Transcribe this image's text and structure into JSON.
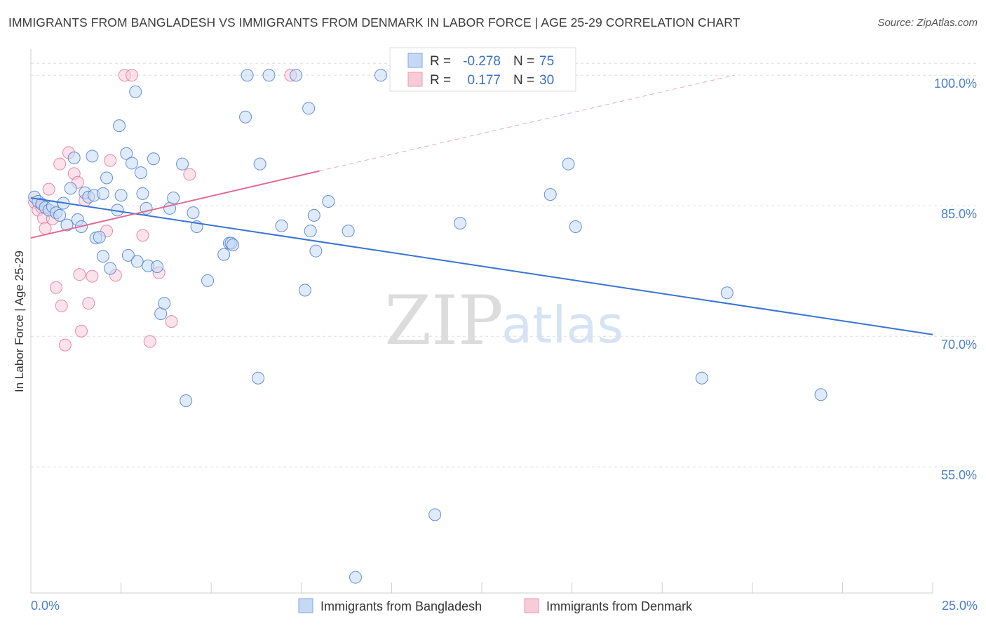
{
  "title": "IMMIGRANTS FROM BANGLADESH VS IMMIGRANTS FROM DENMARK IN LABOR FORCE | AGE 25-29 CORRELATION CHART",
  "source": "Source: ZipAtlas.com",
  "watermark": {
    "zip": "ZIP",
    "atlas": "atlas"
  },
  "colors": {
    "blue": "#4a7fd0",
    "blue_fill": "#c5d9f5",
    "blue_line": "#3a74d0",
    "pink": "#e0789b",
    "pink_fill": "#f9cad8",
    "pink_line": "#e06a92",
    "grid": "#dddddd"
  },
  "legend": {
    "rows": [
      {
        "r_label": "R = ",
        "r_value": "-0.278",
        "n_label": "N = ",
        "n_value": "75"
      },
      {
        "r_label": "R = ",
        "r_value": "0.177",
        "n_label": "N = ",
        "n_value": "30"
      }
    ]
  },
  "chart_data": {
    "type": "scatter",
    "title": "IMMIGRANTS FROM BANGLADESH VS IMMIGRANTS FROM DENMARK IN LABOR FORCE | AGE 25-29 CORRELATION CHART",
    "xlabel": "",
    "ylabel": "In Labor Force | Age 25-29",
    "xlim": [
      0,
      25
    ],
    "ylim": [
      40.5,
      103
    ],
    "x_tick_labels": [
      "0.0%",
      "25.0%"
    ],
    "y_ticks": [
      {
        "value": 55,
        "label": "55.0%"
      },
      {
        "value": 70,
        "label": "70.0%"
      },
      {
        "value": 85,
        "label": "85.0%"
      },
      {
        "value": 100,
        "label": "100.0%"
      }
    ],
    "series": [
      {
        "name": "Immigrants from Bangladesh",
        "color": "#4a7fd0",
        "R": -0.278,
        "N": 75,
        "trend": {
          "x": [
            0,
            25
          ],
          "y": [
            85.9,
            70.2
          ],
          "dashed_from": null
        },
        "points": [
          [
            0.1,
            86.0
          ],
          [
            0.2,
            85.5
          ],
          [
            0.3,
            85.2
          ],
          [
            0.4,
            84.8
          ],
          [
            0.5,
            84.5
          ],
          [
            0.6,
            84.9
          ],
          [
            0.7,
            84.2
          ],
          [
            0.8,
            83.9
          ],
          [
            0.9,
            85.3
          ],
          [
            1.0,
            82.8
          ],
          [
            1.1,
            87.0
          ],
          [
            1.2,
            90.5
          ],
          [
            1.3,
            83.4
          ],
          [
            1.4,
            82.6
          ],
          [
            1.5,
            86.5
          ],
          [
            1.6,
            86.0
          ],
          [
            1.7,
            90.7
          ],
          [
            1.75,
            86.2
          ],
          [
            1.8,
            81.3
          ],
          [
            1.9,
            81.4
          ],
          [
            2.0,
            86.4
          ],
          [
            2.0,
            79.2
          ],
          [
            2.1,
            88.2
          ],
          [
            2.2,
            77.8
          ],
          [
            2.4,
            84.5
          ],
          [
            2.45,
            94.2
          ],
          [
            2.5,
            86.2
          ],
          [
            2.65,
            91.0
          ],
          [
            2.7,
            79.3
          ],
          [
            2.8,
            89.9
          ],
          [
            2.9,
            98.1
          ],
          [
            2.95,
            78.6
          ],
          [
            3.05,
            88.8
          ],
          [
            3.1,
            86.4
          ],
          [
            3.2,
            84.7
          ],
          [
            3.25,
            78.1
          ],
          [
            3.4,
            90.4
          ],
          [
            3.5,
            78.0
          ],
          [
            3.6,
            72.6
          ],
          [
            3.7,
            73.8
          ],
          [
            3.85,
            84.7
          ],
          [
            3.95,
            85.9
          ],
          [
            4.2,
            89.8
          ],
          [
            4.3,
            62.6
          ],
          [
            4.5,
            84.2
          ],
          [
            4.6,
            82.6
          ],
          [
            4.9,
            76.4
          ],
          [
            5.35,
            79.4
          ],
          [
            5.5,
            80.7
          ],
          [
            5.55,
            80.7
          ],
          [
            5.6,
            80.5
          ],
          [
            5.95,
            95.2
          ],
          [
            6.0,
            100.0
          ],
          [
            6.3,
            65.2
          ],
          [
            6.35,
            89.8
          ],
          [
            6.6,
            100.0
          ],
          [
            6.95,
            82.7
          ],
          [
            7.35,
            100.0
          ],
          [
            7.6,
            75.3
          ],
          [
            7.7,
            96.2
          ],
          [
            7.75,
            82.1
          ],
          [
            7.85,
            83.9
          ],
          [
            7.9,
            79.8
          ],
          [
            8.25,
            85.5
          ],
          [
            8.8,
            82.1
          ],
          [
            9.0,
            42.3
          ],
          [
            9.7,
            100.0
          ],
          [
            11.9,
            83.0
          ],
          [
            14.4,
            86.3
          ],
          [
            14.9,
            89.8
          ],
          [
            15.1,
            82.6
          ],
          [
            18.6,
            65.2
          ],
          [
            19.3,
            75.0
          ],
          [
            21.9,
            63.3
          ],
          [
            11.2,
            49.5
          ]
        ]
      },
      {
        "name": "Immigrants from Denmark",
        "color": "#e0789b",
        "R": 0.177,
        "N": 30,
        "trend": {
          "x": [
            0,
            8.0,
            19.5
          ],
          "y": [
            81.3,
            89.0,
            100.0
          ],
          "dashed_from": 8.0
        },
        "points": [
          [
            0.1,
            85.4
          ],
          [
            0.2,
            84.5
          ],
          [
            0.3,
            84.8
          ],
          [
            0.35,
            83.6
          ],
          [
            0.4,
            82.4
          ],
          [
            0.5,
            86.9
          ],
          [
            0.6,
            83.5
          ],
          [
            0.7,
            75.6
          ],
          [
            0.8,
            89.8
          ],
          [
            0.85,
            73.5
          ],
          [
            0.95,
            69.0
          ],
          [
            1.05,
            91.1
          ],
          [
            1.2,
            88.7
          ],
          [
            1.3,
            87.7
          ],
          [
            1.35,
            77.1
          ],
          [
            1.4,
            70.6
          ],
          [
            1.5,
            85.6
          ],
          [
            1.6,
            73.8
          ],
          [
            1.7,
            76.9
          ],
          [
            2.1,
            82.1
          ],
          [
            2.2,
            90.2
          ],
          [
            2.35,
            77.0
          ],
          [
            2.6,
            100.0
          ],
          [
            2.8,
            100.0
          ],
          [
            3.1,
            81.6
          ],
          [
            3.3,
            69.4
          ],
          [
            3.55,
            77.3
          ],
          [
            3.9,
            71.7
          ],
          [
            4.4,
            88.6
          ],
          [
            7.2,
            100.0
          ]
        ]
      }
    ]
  }
}
